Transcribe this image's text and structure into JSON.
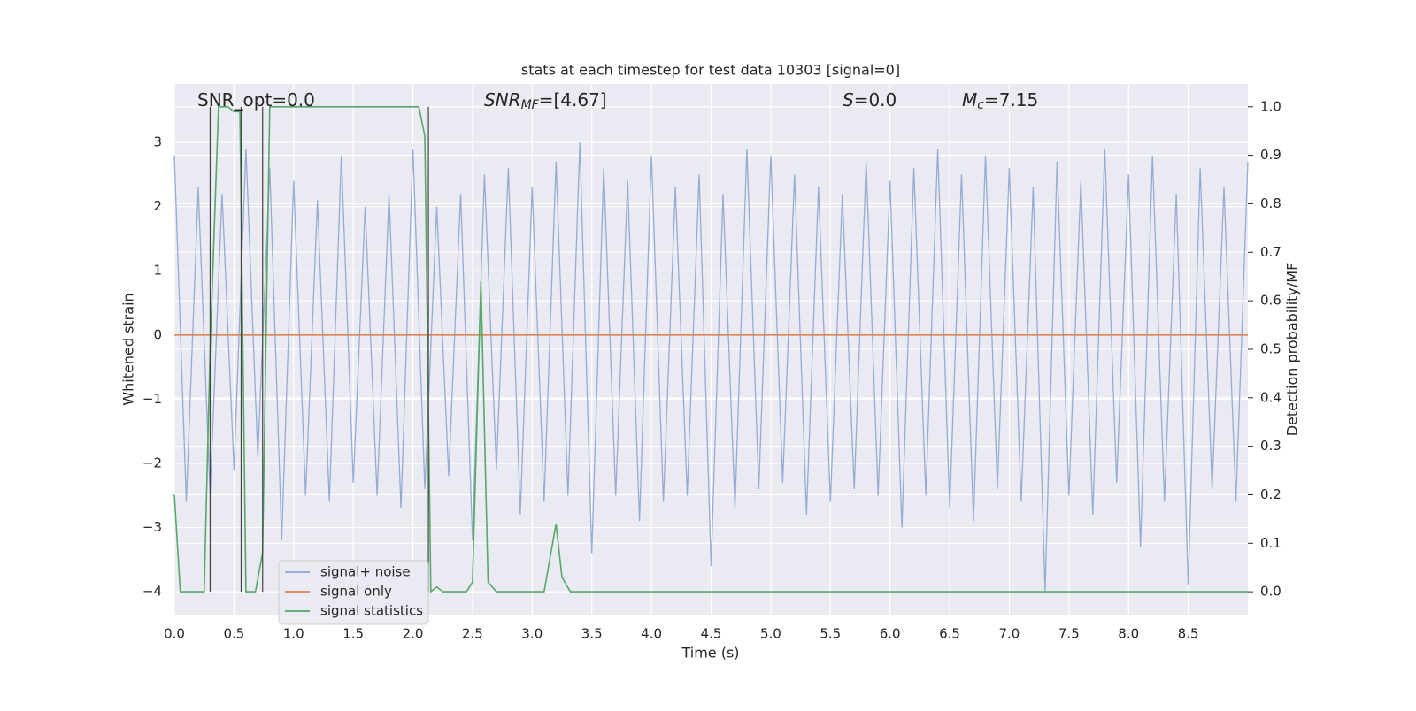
{
  "chart_data": {
    "type": "line",
    "title": "stats at each timestep for test data 10303 [signal=0]",
    "xlabel": "Time (s)",
    "ylabel": "Whitened strain",
    "y2label": "Detection probability/MF",
    "xlim": [
      0,
      9.0
    ],
    "ylim": [
      -4.37,
      3.91
    ],
    "y2lim": [
      -0.049,
      1.047
    ],
    "xticks": [
      {
        "value": 0,
        "label": "0.0"
      },
      {
        "value": 0.5,
        "label": "0.5"
      },
      {
        "value": 1,
        "label": "1.0"
      },
      {
        "value": 1.5,
        "label": "1.5"
      },
      {
        "value": 2,
        "label": "2.0"
      },
      {
        "value": 2.5,
        "label": "2.5"
      },
      {
        "value": 3,
        "label": "3.0"
      },
      {
        "value": 3.5,
        "label": "3.5"
      },
      {
        "value": 4,
        "label": "4.0"
      },
      {
        "value": 4.5,
        "label": "4.5"
      },
      {
        "value": 5,
        "label": "5.0"
      },
      {
        "value": 5.5,
        "label": "5.5"
      },
      {
        "value": 6,
        "label": "6.0"
      },
      {
        "value": 6.5,
        "label": "6.5"
      },
      {
        "value": 7,
        "label": "7.0"
      },
      {
        "value": 7.5,
        "label": "7.5"
      },
      {
        "value": 8,
        "label": "8.0"
      },
      {
        "value": 8.5,
        "label": "8.5"
      }
    ],
    "yticks": [
      {
        "value": -4,
        "label": "−4"
      },
      {
        "value": -3,
        "label": "−3"
      },
      {
        "value": -2,
        "label": "−2"
      },
      {
        "value": -1,
        "label": "−1"
      },
      0,
      1,
      2,
      3
    ],
    "y2ticks": [
      {
        "value": 0,
        "label": "0.0"
      },
      {
        "value": 0.1,
        "label": "0.1"
      },
      {
        "value": 0.2,
        "label": "0.2"
      },
      {
        "value": 0.3,
        "label": "0.3"
      },
      {
        "value": 0.4,
        "label": "0.4"
      },
      {
        "value": 0.5,
        "label": "0.5"
      },
      {
        "value": 0.6,
        "label": "0.6"
      },
      {
        "value": 0.7,
        "label": "0.7"
      },
      {
        "value": 0.8,
        "label": "0.8"
      },
      {
        "value": 0.9,
        "label": "0.9"
      },
      {
        "value": 1,
        "label": "1.0"
      }
    ],
    "grid": true,
    "legend": "lower left",
    "series": [
      {
        "name": "signal+ noise",
        "color": "#8ea3cd",
        "x": [
          0,
          0.1,
          0.2,
          0.3,
          0.4,
          0.5,
          0.6,
          0.7,
          0.8,
          0.9,
          1,
          1.1,
          1.2,
          1.3,
          1.4,
          1.5,
          1.6,
          1.7,
          1.8,
          1.9,
          2,
          2.1,
          2.2,
          2.3,
          2.4,
          2.5,
          2.6,
          2.7,
          2.8,
          2.9,
          3,
          3.1,
          3.2,
          3.3,
          3.4,
          3.5,
          3.6,
          3.7,
          3.8,
          3.9,
          4,
          4.1,
          4.2,
          4.3,
          4.4,
          4.5,
          4.6,
          4.7,
          4.8,
          4.9,
          5,
          5.1,
          5.2,
          5.3,
          5.4,
          5.5,
          5.6,
          5.7,
          5.8,
          5.9,
          6,
          6.1,
          6.2,
          6.3,
          6.4,
          6.5,
          6.6,
          6.7,
          6.8,
          6.9,
          7,
          7.1,
          7.2,
          7.3,
          7.4,
          7.5,
          7.6,
          7.7,
          7.8,
          7.9,
          8,
          8.1,
          8.2,
          8.3,
          8.4,
          8.5,
          8.6,
          8.7,
          8.8,
          8.9,
          9.0
        ],
        "values": [
          2.8,
          -2.6,
          2.3,
          -2.5,
          2.2,
          -2.1,
          2.9,
          -1.9,
          2.6,
          -3.2,
          2.4,
          -2.5,
          2.1,
          -2.6,
          2.8,
          -2.3,
          2.0,
          -2.5,
          2.2,
          -2.7,
          2.9,
          -2.4,
          2.0,
          -2.2,
          2.2,
          -3.2,
          2.5,
          -2.1,
          2.6,
          -2.8,
          2.3,
          -2.6,
          2.7,
          -2.5,
          3.0,
          -3.4,
          2.6,
          -2.5,
          2.4,
          -2.9,
          2.8,
          -2.6,
          2.3,
          -2.5,
          2.5,
          -3.6,
          2.2,
          -2.7,
          2.9,
          -2.4,
          2.8,
          -2.3,
          2.5,
          -2.8,
          2.3,
          -2.6,
          2.2,
          -2.4,
          2.7,
          -2.5,
          2.4,
          -3.0,
          2.6,
          -2.5,
          2.9,
          -2.7,
          2.5,
          -2.9,
          2.8,
          -2.4,
          2.6,
          -2.6,
          2.3,
          -4.0,
          2.7,
          -2.5,
          2.4,
          -2.8,
          2.9,
          -2.3,
          2.5,
          -3.3,
          2.8,
          -2.6,
          2.2,
          -3.9,
          2.6,
          -2.4,
          2.3,
          -2.6,
          2.7
        ]
      },
      {
        "name": "signal only",
        "color": "#dd8452",
        "x": [
          0,
          9.0
        ],
        "values": [
          0,
          0
        ]
      },
      {
        "name": "signal statistics",
        "color": "#55a868",
        "axis": "y2",
        "x": [
          0,
          0.05,
          0.25,
          0.3,
          0.37,
          0.45,
          0.5,
          0.55,
          0.6,
          0.68,
          0.74,
          0.8,
          2.05,
          2.1,
          2.15,
          2.2,
          2.25,
          2.45,
          2.5,
          2.57,
          2.63,
          2.7,
          3.1,
          3.2,
          3.25,
          3.32,
          9.0
        ],
        "values": [
          0.2,
          0,
          0,
          0.5,
          1,
          1,
          0.99,
          0.99,
          0,
          0,
          0.08,
          1,
          1,
          0.94,
          0,
          0.01,
          0,
          0,
          0.02,
          0.64,
          0.02,
          0,
          0,
          0.14,
          0.03,
          0,
          0
        ]
      }
    ],
    "vlines": {
      "x": [
        0.3,
        0.56,
        0.74,
        2.13
      ],
      "color": "#444444"
    },
    "annotations": [
      [
        {
          "text": "SNR_opt=0.0"
        }
      ],
      [
        {
          "text": "SNR",
          "style": "italic"
        },
        {
          "text": "MF",
          "style": "sub"
        },
        {
          "text": "=[4.67]"
        }
      ],
      [
        {
          "text": "S",
          "style": "italic"
        },
        {
          "text": "=0.0"
        }
      ],
      [
        {
          "text": "M",
          "style": "italic"
        },
        {
          "text": "c",
          "style": "sub"
        },
        {
          "text": "=7.15"
        }
      ]
    ]
  }
}
